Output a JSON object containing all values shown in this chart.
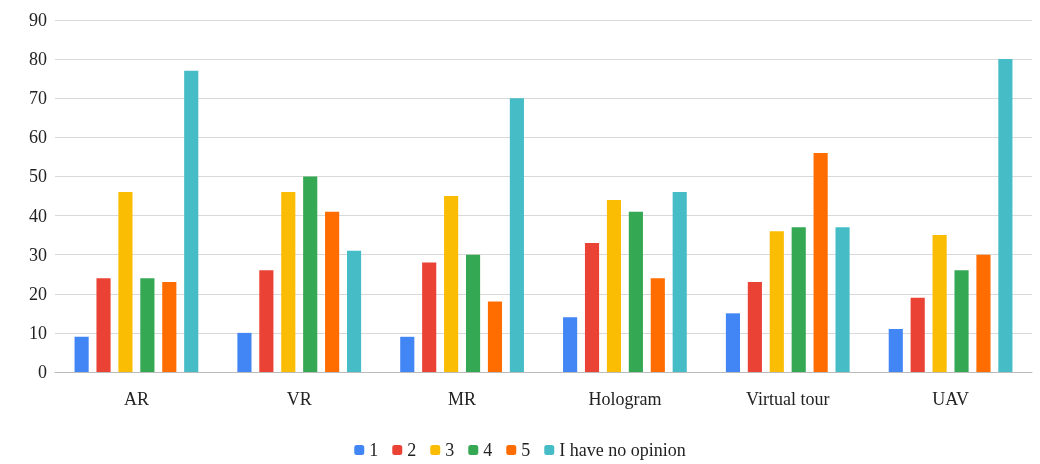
{
  "chart_data": {
    "type": "bar",
    "categories": [
      "AR",
      "VR",
      "MR",
      "Hologram",
      "Virtual tour",
      "UAV"
    ],
    "series": [
      {
        "name": "1",
        "color": "#4285f4",
        "values": [
          9,
          10,
          9,
          14,
          15,
          11
        ]
      },
      {
        "name": "2",
        "color": "#ea4335",
        "values": [
          24,
          26,
          28,
          33,
          23,
          19
        ]
      },
      {
        "name": "3",
        "color": "#fbbc04",
        "values": [
          46,
          46,
          45,
          44,
          36,
          35
        ]
      },
      {
        "name": "4",
        "color": "#34a853",
        "values": [
          24,
          50,
          30,
          41,
          37,
          26
        ]
      },
      {
        "name": "5",
        "color": "#ff6d01",
        "values": [
          23,
          41,
          18,
          24,
          56,
          30
        ]
      },
      {
        "name": "I have no opinion",
        "color": "#46bdc6",
        "values": [
          77,
          31,
          70,
          46,
          37,
          80
        ]
      }
    ],
    "ylim": [
      0,
      90
    ],
    "yticks": [
      0,
      10,
      20,
      30,
      40,
      50,
      60,
      70,
      80,
      90
    ],
    "grid": "y",
    "legend": "bottom"
  }
}
